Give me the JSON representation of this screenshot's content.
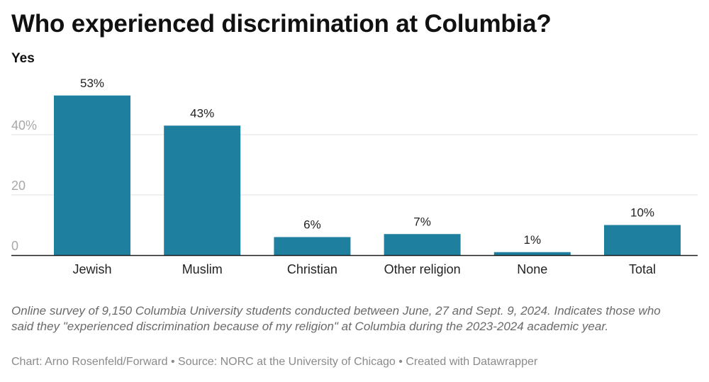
{
  "header": {
    "title": "Who experienced discrimination at Columbia?",
    "subtitle": "Yes"
  },
  "footer": {
    "notes": "Online survey of 9,150 Columbia University students conducted between June, 27 and Sept. 9, 2024. Indicates those who said they \"experienced discrimination because of my religion\" at Columbia during the 2023-2024 academic year.",
    "credits": "Chart: Arno Rosenfeld/Forward • Source: NORC at the University of Chicago • Created with Datawrapper"
  },
  "chart_data": {
    "type": "bar",
    "title": "Who experienced discrimination at Columbia?",
    "subtitle": "Yes",
    "categories": [
      "Jewish",
      "Muslim",
      "Christian",
      "Other religion",
      "None",
      "Total"
    ],
    "values": [
      53,
      43,
      6,
      7,
      1,
      10
    ],
    "value_labels": [
      "53%",
      "43%",
      "6%",
      "7%",
      "1%",
      "10%"
    ],
    "ylim": [
      0,
      53
    ],
    "yticks": [
      0,
      20,
      40
    ],
    "ytick_labels": [
      "0",
      "20",
      "40%"
    ],
    "grid": true,
    "bar_color": "#1f7f9f",
    "grid_color": "#e2e2e2",
    "axis_color": "#1a1a1a"
  }
}
